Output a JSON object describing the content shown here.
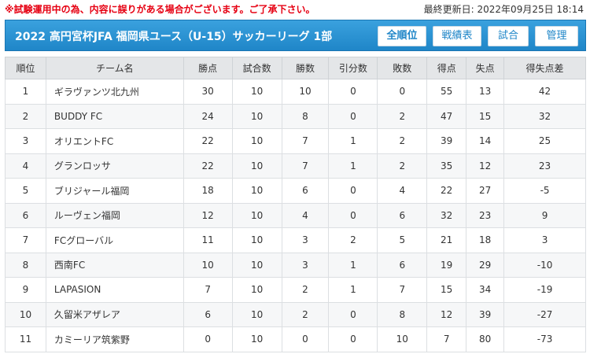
{
  "notice": "※試験運用中の為、内容に誤りがある場合がございます。ご了承下さい。",
  "updated": "最終更新日: 2022年09月25日 18:14",
  "header": {
    "title": "2022 高円宮杯JFA 福岡県ユース（U-15）サッカーリーグ 1部",
    "buttons": [
      "全順位",
      "戦績表",
      "試合",
      "管理"
    ]
  },
  "table": {
    "columns": [
      "順位",
      "チーム名",
      "勝点",
      "試合数",
      "勝数",
      "引分数",
      "敗数",
      "得点",
      "失点",
      "得失点差"
    ],
    "rows": [
      [
        "1",
        "ギラヴァンツ北九州",
        "30",
        "10",
        "10",
        "0",
        "0",
        "55",
        "13",
        "42"
      ],
      [
        "2",
        "BUDDY FC",
        "24",
        "10",
        "8",
        "0",
        "2",
        "47",
        "15",
        "32"
      ],
      [
        "3",
        "オリエントFC",
        "22",
        "10",
        "7",
        "1",
        "2",
        "39",
        "14",
        "25"
      ],
      [
        "4",
        "グランロッサ",
        "22",
        "10",
        "7",
        "1",
        "2",
        "35",
        "12",
        "23"
      ],
      [
        "5",
        "ブリジャール福岡",
        "18",
        "10",
        "6",
        "0",
        "4",
        "22",
        "27",
        "-5"
      ],
      [
        "6",
        "ルーヴェン福岡",
        "12",
        "10",
        "4",
        "0",
        "6",
        "32",
        "23",
        "9"
      ],
      [
        "7",
        "FCグローバル",
        "11",
        "10",
        "3",
        "2",
        "5",
        "21",
        "18",
        "3"
      ],
      [
        "8",
        "西南FC",
        "10",
        "10",
        "3",
        "1",
        "6",
        "19",
        "29",
        "-10"
      ],
      [
        "9",
        "LAPASION",
        "7",
        "10",
        "2",
        "1",
        "7",
        "15",
        "34",
        "-19"
      ],
      [
        "10",
        "久留米アザレア",
        "6",
        "10",
        "2",
        "0",
        "8",
        "12",
        "39",
        "-27"
      ],
      [
        "11",
        "カミーリア筑紫野",
        "0",
        "10",
        "0",
        "0",
        "10",
        "7",
        "80",
        "-73"
      ]
    ]
  }
}
